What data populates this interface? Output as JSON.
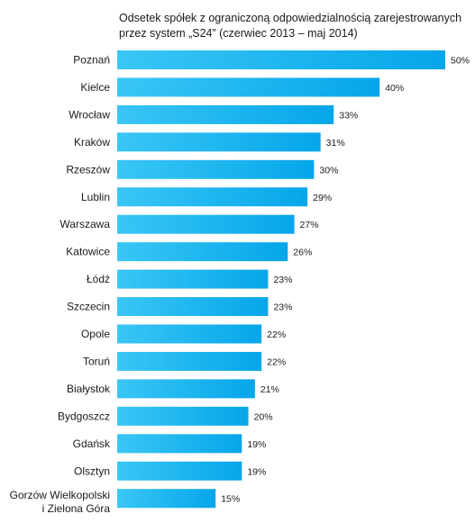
{
  "chart_data": {
    "type": "bar",
    "orientation": "horizontal",
    "title_lines": [
      "Odsetek spółek z ograniczoną odpowiedzialnością zarejestrowanych",
      "przez system „S24” (czerwiec 2013 – maj 2014)"
    ],
    "categories": [
      [
        "Poznań"
      ],
      [
        "Kielce"
      ],
      [
        "Wrocław"
      ],
      [
        "Kraków"
      ],
      [
        "Rzeszów"
      ],
      [
        "Lublin"
      ],
      [
        "Warszawa"
      ],
      [
        "Katowice"
      ],
      [
        "Łódź"
      ],
      [
        "Szczecin"
      ],
      [
        "Opole"
      ],
      [
        "Toruń"
      ],
      [
        "Białystok"
      ],
      [
        "Bydgoszcz"
      ],
      [
        "Gdańsk"
      ],
      [
        "Olsztyn"
      ],
      [
        "Gorzów Wielkopolski",
        "i Zielona Góra"
      ]
    ],
    "values": [
      50,
      40,
      33,
      31,
      30,
      29,
      27,
      26,
      23,
      23,
      22,
      22,
      21,
      20,
      19,
      19,
      15
    ],
    "value_labels": [
      "50%",
      "40%",
      "33%",
      "31%",
      "30%",
      "29%",
      "27%",
      "26%",
      "23%",
      "23%",
      "22%",
      "22%",
      "21%",
      "20%",
      "19%",
      "19%",
      "15%"
    ],
    "unit": "%",
    "xlim": [
      0,
      50
    ],
    "grid": false,
    "legend": "none",
    "bar_color_start": "#3ac6f5",
    "bar_color_end": "#05a6ea"
  }
}
